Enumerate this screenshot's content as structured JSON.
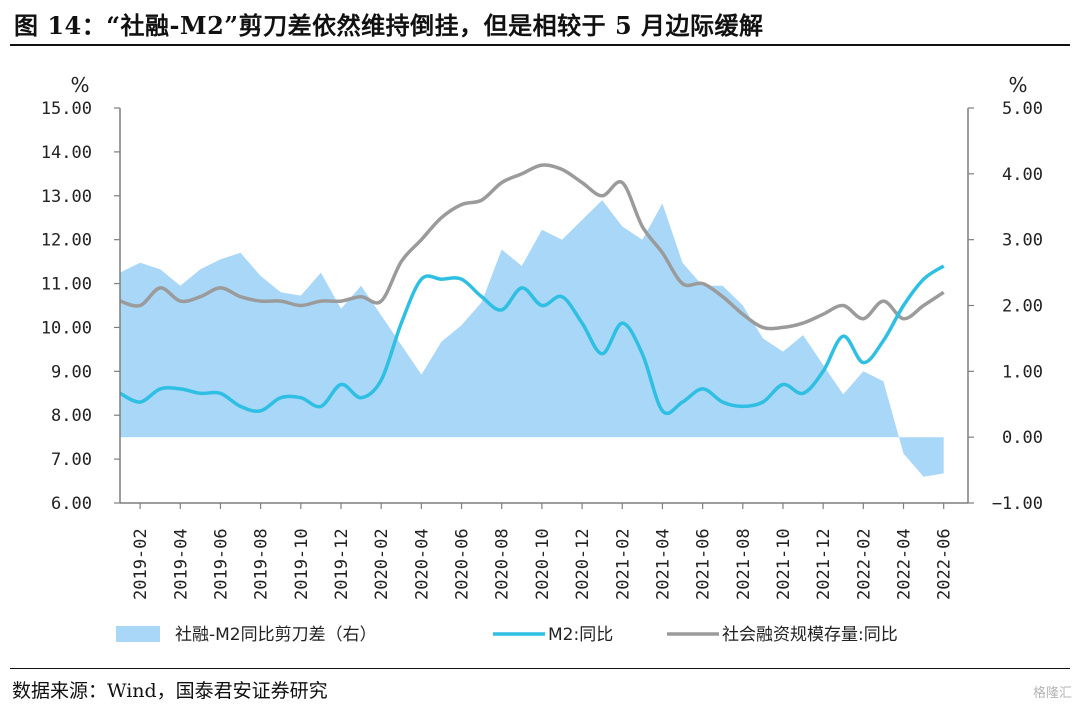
{
  "title": "图 14：“社融-M2”剪刀差依然维持倒挂，但是相较于 5 月边际缓解",
  "source": "数据来源：Wind，国泰君安证券研究",
  "watermark": "格隆汇",
  "colors": {
    "gap_area": "#a9d7f8",
    "m2_line": "#2ebfe3",
    "tsf_line": "#9b9b9b",
    "axis": "#7f7f7f"
  },
  "chart_data": {
    "type": "line",
    "x_ticks": [
      "2019-02",
      "2019-04",
      "2019-06",
      "2019-08",
      "2019-10",
      "2019-12",
      "2020-02",
      "2020-04",
      "2020-06",
      "2020-08",
      "2020-10",
      "2020-12",
      "2021-02",
      "2021-04",
      "2021-06",
      "2021-08",
      "2021-10",
      "2021-12",
      "2022-02",
      "2022-04",
      "2022-06"
    ],
    "left_axis": {
      "unit": "%",
      "ylim": [
        6.0,
        15.0
      ],
      "ticks": [
        "6.00",
        "7.00",
        "8.00",
        "9.00",
        "10.00",
        "11.00",
        "12.00",
        "13.00",
        "14.00",
        "15.00"
      ]
    },
    "right_axis": {
      "unit": "%",
      "ylim": [
        -1.0,
        5.0
      ],
      "ticks": [
        "−1.00",
        "0.00",
        "1.00",
        "2.00",
        "3.00",
        "4.00",
        "5.00"
      ]
    },
    "series": [
      {
        "name": "社融-M2同比剪刀差（右）",
        "type": "area",
        "axis": "right",
        "points": [
          [
            "2019-01",
            2.5
          ],
          [
            "2019-02",
            2.65
          ],
          [
            "2019-03",
            2.55
          ],
          [
            "2019-04",
            2.3
          ],
          [
            "2019-05",
            2.55
          ],
          [
            "2019-06",
            2.7
          ],
          [
            "2019-07",
            2.8
          ],
          [
            "2019-08",
            2.45
          ],
          [
            "2019-09",
            2.2
          ],
          [
            "2019-10",
            2.15
          ],
          [
            "2019-11",
            2.5
          ],
          [
            "2019-12",
            1.95
          ],
          [
            "2020-01",
            2.3
          ],
          [
            "2020-02",
            1.85
          ],
          [
            "2020-03",
            1.4
          ],
          [
            "2020-04",
            0.95
          ],
          [
            "2020-05",
            1.45
          ],
          [
            "2020-06",
            1.7
          ],
          [
            "2020-07",
            2.05
          ],
          [
            "2020-08",
            2.85
          ],
          [
            "2020-09",
            2.6
          ],
          [
            "2020-10",
            3.15
          ],
          [
            "2020-11",
            3.0
          ],
          [
            "2020-12",
            3.3
          ],
          [
            "2021-01",
            3.6
          ],
          [
            "2021-02",
            3.2
          ],
          [
            "2021-03",
            3.0
          ],
          [
            "2021-04",
            3.55
          ],
          [
            "2021-05",
            2.65
          ],
          [
            "2021-06",
            2.3
          ],
          [
            "2021-07",
            2.3
          ],
          [
            "2021-08",
            2.0
          ],
          [
            "2021-09",
            1.5
          ],
          [
            "2021-10",
            1.3
          ],
          [
            "2021-11",
            1.55
          ],
          [
            "2021-12",
            1.1
          ],
          [
            "2022-01",
            0.65
          ],
          [
            "2022-02",
            1.0
          ],
          [
            "2022-03",
            0.85
          ],
          [
            "2022-04",
            -0.25
          ],
          [
            "2022-05",
            -0.6
          ],
          [
            "2022-06",
            -0.55
          ]
        ]
      },
      {
        "name": "M2:同比",
        "type": "line",
        "axis": "left",
        "points": [
          [
            "2019-01",
            8.5
          ],
          [
            "2019-02",
            8.3
          ],
          [
            "2019-03",
            8.6
          ],
          [
            "2019-04",
            8.6
          ],
          [
            "2019-05",
            8.5
          ],
          [
            "2019-06",
            8.5
          ],
          [
            "2019-07",
            8.2
          ],
          [
            "2019-08",
            8.1
          ],
          [
            "2019-09",
            8.4
          ],
          [
            "2019-10",
            8.4
          ],
          [
            "2019-11",
            8.2
          ],
          [
            "2019-12",
            8.7
          ],
          [
            "2020-01",
            8.4
          ],
          [
            "2020-02",
            8.8
          ],
          [
            "2020-03",
            10.1
          ],
          [
            "2020-04",
            11.1
          ],
          [
            "2020-05",
            11.1
          ],
          [
            "2020-06",
            11.1
          ],
          [
            "2020-07",
            10.7
          ],
          [
            "2020-08",
            10.4
          ],
          [
            "2020-09",
            10.9
          ],
          [
            "2020-10",
            10.5
          ],
          [
            "2020-11",
            10.7
          ],
          [
            "2020-12",
            10.1
          ],
          [
            "2021-01",
            9.4
          ],
          [
            "2021-02",
            10.1
          ],
          [
            "2021-03",
            9.4
          ],
          [
            "2021-04",
            8.1
          ],
          [
            "2021-05",
            8.3
          ],
          [
            "2021-06",
            8.6
          ],
          [
            "2021-07",
            8.3
          ],
          [
            "2021-08",
            8.2
          ],
          [
            "2021-09",
            8.3
          ],
          [
            "2021-10",
            8.7
          ],
          [
            "2021-11",
            8.5
          ],
          [
            "2021-12",
            9.0
          ],
          [
            "2022-01",
            9.8
          ],
          [
            "2022-02",
            9.2
          ],
          [
            "2022-03",
            9.7
          ],
          [
            "2022-04",
            10.5
          ],
          [
            "2022-05",
            11.1
          ],
          [
            "2022-06",
            11.4
          ]
        ]
      },
      {
        "name": "社会融资规模存量:同比",
        "type": "line",
        "axis": "left",
        "points": [
          [
            "2019-01",
            10.6
          ],
          [
            "2019-02",
            10.5
          ],
          [
            "2019-03",
            10.9
          ],
          [
            "2019-04",
            10.6
          ],
          [
            "2019-05",
            10.7
          ],
          [
            "2019-06",
            10.9
          ],
          [
            "2019-07",
            10.7
          ],
          [
            "2019-08",
            10.6
          ],
          [
            "2019-09",
            10.6
          ],
          [
            "2019-10",
            10.5
          ],
          [
            "2019-11",
            10.6
          ],
          [
            "2019-12",
            10.6
          ],
          [
            "2020-01",
            10.7
          ],
          [
            "2020-02",
            10.6
          ],
          [
            "2020-03",
            11.5
          ],
          [
            "2020-04",
            12.0
          ],
          [
            "2020-05",
            12.5
          ],
          [
            "2020-06",
            12.8
          ],
          [
            "2020-07",
            12.9
          ],
          [
            "2020-08",
            13.3
          ],
          [
            "2020-09",
            13.5
          ],
          [
            "2020-10",
            13.7
          ],
          [
            "2020-11",
            13.6
          ],
          [
            "2020-12",
            13.3
          ],
          [
            "2021-01",
            13.0
          ],
          [
            "2021-02",
            13.3
          ],
          [
            "2021-03",
            12.3
          ],
          [
            "2021-04",
            11.7
          ],
          [
            "2021-05",
            11.0
          ],
          [
            "2021-06",
            11.0
          ],
          [
            "2021-07",
            10.7
          ],
          [
            "2021-08",
            10.3
          ],
          [
            "2021-09",
            10.0
          ],
          [
            "2021-10",
            10.0
          ],
          [
            "2021-11",
            10.1
          ],
          [
            "2021-12",
            10.3
          ],
          [
            "2022-01",
            10.5
          ],
          [
            "2022-02",
            10.2
          ],
          [
            "2022-03",
            10.6
          ],
          [
            "2022-04",
            10.2
          ],
          [
            "2022-05",
            10.5
          ],
          [
            "2022-06",
            10.8
          ]
        ]
      }
    ]
  }
}
